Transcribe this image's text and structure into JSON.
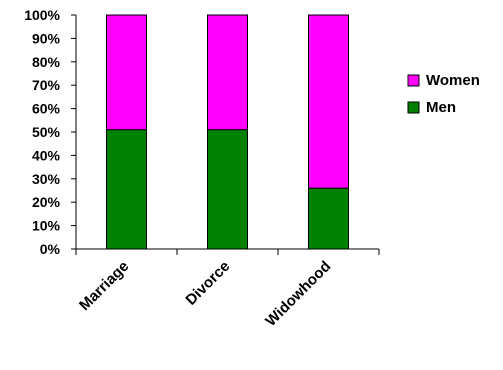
{
  "chart_data": {
    "type": "bar",
    "stacked": true,
    "normalized": true,
    "categories": [
      "Marriage",
      "Divorce",
      "Widowhood"
    ],
    "series": [
      {
        "name": "Men",
        "color": "#008000",
        "values": [
          51,
          51,
          26
        ]
      },
      {
        "name": "Women",
        "color": "#FF00FF",
        "values": [
          49,
          49,
          74
        ]
      }
    ],
    "y_ticks": [
      "0%",
      "10%",
      "20%",
      "30%",
      "40%",
      "50%",
      "60%",
      "70%",
      "80%",
      "90%",
      "100%"
    ],
    "ylim": [
      0,
      100
    ],
    "grid": false,
    "legend": {
      "position": "right",
      "entries": [
        "Women",
        "Men"
      ]
    }
  }
}
